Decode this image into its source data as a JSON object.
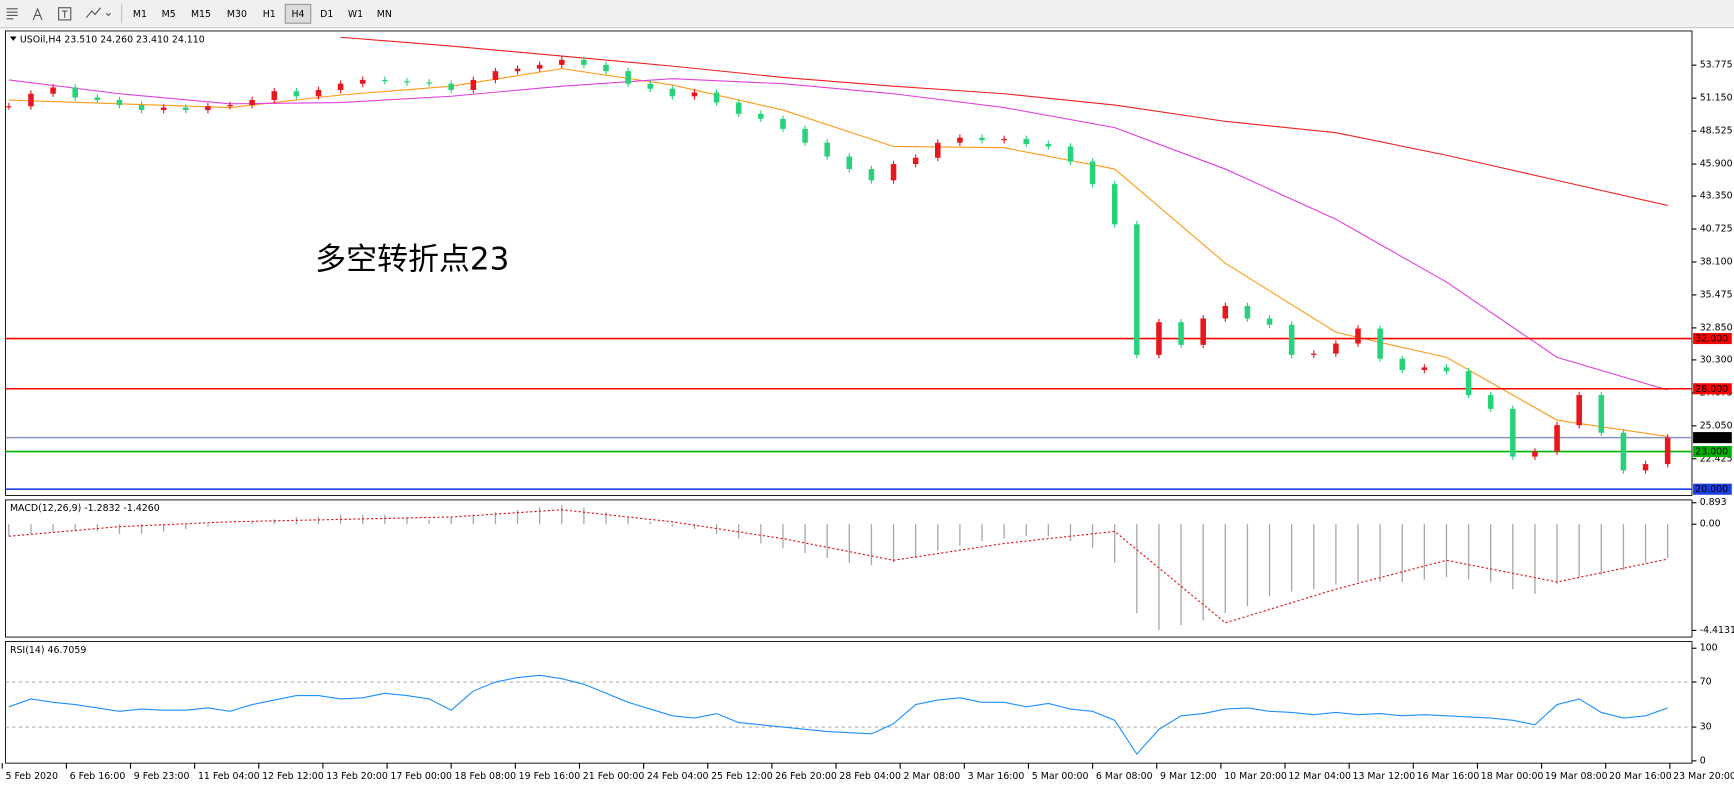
{
  "toolbar": {
    "timeframes": [
      "M1",
      "M5",
      "M15",
      "M30",
      "H1",
      "H4",
      "D1",
      "W1",
      "MN"
    ],
    "active": "H4"
  },
  "chart_data": [
    {
      "type": "candlestick",
      "title": "USOil,H4 23.510 24.260 23.410 24.110",
      "annotation": "多空转折点23",
      "up_color": "#e8171b",
      "down_color": "#27d27a",
      "values": [
        50.5,
        51.5,
        52,
        51.2,
        51,
        50.6,
        50.2,
        50.4,
        50.2,
        50.5,
        50.6,
        51,
        51.7,
        51.3,
        51.8,
        52.3,
        52.6,
        52.5,
        52.4,
        52.3,
        51.8,
        52.6,
        53.3,
        53.5,
        53.8,
        54.2,
        53.8,
        53.3,
        52.3,
        51.9,
        51.3,
        51.6,
        50.8,
        49.9,
        49.5,
        48.7,
        47.6,
        46.5,
        45.5,
        44.6,
        45.9,
        46.4,
        47.6,
        48,
        47.8,
        47.9,
        47.5,
        47.3,
        46.1,
        44.3,
        41.1,
        30.7,
        33.3,
        31.5,
        33.6,
        34.6,
        33.6,
        33.1,
        30.7,
        30.8,
        31.6,
        32.8,
        30.4,
        29.5,
        29.7,
        29.4,
        27.5,
        26.4,
        22.6,
        23,
        25.1,
        27.5,
        24.5,
        21.5,
        22,
        24.11
      ],
      "series": [
        {
          "color": "#ff9a1a",
          "x": [
            0,
            5,
            10,
            15,
            20,
            25,
            30,
            35,
            40,
            45,
            50,
            55,
            60,
            65,
            70,
            75
          ],
          "values": [
            51,
            50.7,
            50.4,
            51.4,
            52.1,
            53.5,
            52.2,
            50.2,
            47.3,
            47.2,
            45.5,
            38,
            32.5,
            30.5,
            25.5,
            24.2
          ]
        },
        {
          "color": "#e040e0",
          "x": [
            0,
            5,
            10,
            15,
            20,
            25,
            30,
            35,
            40,
            45,
            50,
            55,
            60,
            65,
            70,
            75
          ],
          "values": [
            52.6,
            51.5,
            50.7,
            50.8,
            51.3,
            52.1,
            52.7,
            52.3,
            51.5,
            50.4,
            48.8,
            45.5,
            41.5,
            36.5,
            30.5,
            27.9
          ]
        },
        {
          "color": "#ef2020",
          "x": [
            0,
            5,
            10,
            15,
            20,
            25,
            30,
            35,
            40,
            45,
            50,
            55,
            60,
            65,
            70,
            75
          ],
          "values": [
            null,
            null,
            null,
            56.0,
            55.3,
            54.5,
            53.7,
            52.8,
            52.1,
            51.5,
            50.6,
            49.3,
            48.4,
            46.6,
            44.6,
            42.6
          ]
        }
      ],
      "levels": [
        {
          "value": 32,
          "label": "32.000",
          "color": "#ff0000"
        },
        {
          "value": 28,
          "label": "28.000",
          "color": "#ff0000"
        },
        {
          "value": 24.11,
          "label": "24.110",
          "color": "#8a94c0",
          "label_color": "#000000"
        },
        {
          "value": 23,
          "label": "23.000",
          "color": "#00b000"
        },
        {
          "value": 20,
          "label": "20.000",
          "color": "#1a3fe0"
        }
      ],
      "ylim": [
        19.5,
        56.5
      ],
      "yticks": [
        {
          "value": 53.775,
          "label": "53.775"
        },
        {
          "value": 51.15,
          "label": "51.150"
        },
        {
          "value": 48.525,
          "label": "48.525"
        },
        {
          "value": 45.9,
          "label": "45.900"
        },
        {
          "value": 43.35,
          "label": "43.350"
        },
        {
          "value": 40.725,
          "label": "40.725"
        },
        {
          "value": 38.1,
          "label": "38.100"
        },
        {
          "value": 35.475,
          "label": "35.475"
        },
        {
          "value": 32.85,
          "label": "32.850"
        },
        {
          "value": 30.3,
          "label": "30.300"
        },
        {
          "value": 27.675,
          "label": "27.675"
        },
        {
          "value": 25.05,
          "label": "25.050"
        },
        {
          "value": 22.425,
          "label": "22.425"
        }
      ],
      "time_labels": [
        "5 Feb 2020",
        "6 Feb 16:00",
        "9 Feb 23:00",
        "11 Feb 04:00",
        "12 Feb 12:00",
        "13 Feb 20:00",
        "17 Feb 00:00",
        "18 Feb 08:00",
        "19 Feb 16:00",
        "21 Feb 00:00",
        "24 Feb 04:00",
        "25 Feb 12:00",
        "26 Feb 20:00",
        "28 Feb 04:00",
        "2 Mar 08:00",
        "3 Mar 16:00",
        "5 Mar 00:00",
        "6 Mar 08:00",
        "9 Mar 12:00",
        "10 Mar 20:00",
        "12 Mar 04:00",
        "13 Mar 12:00",
        "16 Mar 16:00",
        "18 Mar 00:00",
        "19 Mar 08:00",
        "20 Mar 16:00",
        "23 Mar 20:00"
      ]
    },
    {
      "type": "bar",
      "title": "MACD(12,26,9) -1.2832 -1.4260",
      "color": "#a8a8a8",
      "values": [
        -0.5,
        -0.4,
        -0.3,
        -0.3,
        -0.3,
        -0.4,
        -0.4,
        -0.3,
        -0.2,
        -0.1,
        0,
        0.1,
        0.2,
        0.3,
        0.3,
        0.4,
        0.4,
        0.4,
        0.3,
        0.2,
        0.3,
        0.4,
        0.5,
        0.6,
        0.7,
        0.8,
        0.7,
        0.5,
        0.3,
        0.1,
        -0.1,
        -0.2,
        -0.4,
        -0.6,
        -0.8,
        -1,
        -1.2,
        -1.4,
        -1.6,
        -1.7,
        -1.6,
        -1.4,
        -1.1,
        -0.9,
        -0.7,
        -0.6,
        -0.5,
        -0.5,
        -0.7,
        -1,
        -1.6,
        -3.7,
        -4.4,
        -4.2,
        -4,
        -3.7,
        -3.4,
        -3,
        -2.8,
        -2.7,
        -2.5,
        -2.4,
        -2.4,
        -2.4,
        -2.3,
        -2.2,
        -2.3,
        -2.4,
        -2.7,
        -2.9,
        -2.5,
        -2.2,
        -2.1,
        -1.9,
        -1.6,
        -1.4
      ],
      "series": [
        {
          "color": "#e01010",
          "x": [
            0,
            5,
            10,
            15,
            20,
            25,
            30,
            35,
            40,
            45,
            50,
            55,
            60,
            65,
            70,
            75
          ],
          "values": [
            -0.5,
            -0.1,
            0.1,
            0.2,
            0.3,
            0.6,
            0.1,
            -0.6,
            -1.5,
            -0.8,
            -0.3,
            -4.1,
            -2.7,
            -1.5,
            -2.4,
            -1.45
          ]
        }
      ],
      "ylim": [
        -4.69,
        1.01
      ],
      "yticks": [
        0.893,
        {
          "value": 0,
          "label": "0.00"
        },
        -4.4131
      ]
    },
    {
      "type": "line",
      "title": "RSI(14) 46.7059",
      "color": "#1e90ff",
      "values": [
        48,
        55,
        52,
        50,
        47,
        44,
        46,
        45,
        45,
        47,
        44,
        50,
        54,
        58,
        58,
        55,
        56,
        60,
        58,
        55,
        45,
        62,
        70,
        74,
        76,
        73,
        68,
        60,
        52,
        46,
        40,
        38,
        42,
        34,
        32,
        30,
        28,
        26,
        25,
        24,
        33,
        50,
        54,
        56,
        52,
        52,
        48,
        51,
        46,
        44,
        36,
        6,
        28,
        40,
        42,
        46,
        47,
        44,
        43,
        41,
        43,
        41,
        42,
        40,
        41,
        40,
        39,
        38,
        36,
        32,
        50,
        55,
        43,
        38,
        40,
        47
      ],
      "levels": [
        70,
        30
      ],
      "ylim": [
        -2,
        106
      ],
      "yticks": [
        100,
        70,
        30,
        0
      ]
    }
  ]
}
